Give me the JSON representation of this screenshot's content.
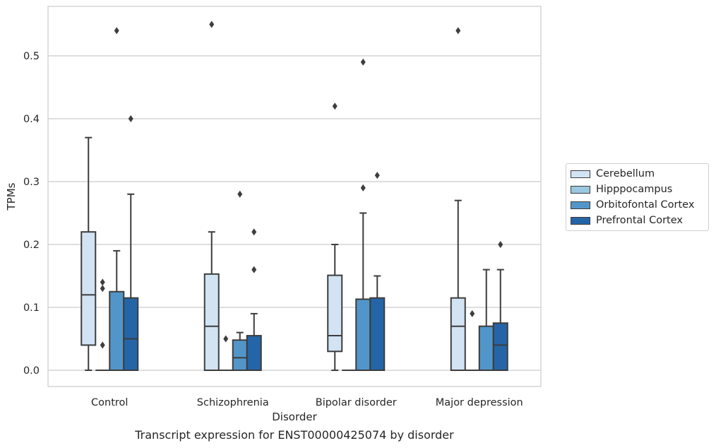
{
  "chart_data": {
    "type": "box",
    "xlabel": "Disorder",
    "ylabel": "TPMs",
    "ylim": [
      -0.027,
      0.58
    ],
    "yticks": [
      0.0,
      0.1,
      0.2,
      0.3,
      0.4,
      0.5
    ],
    "ytick_labels": [
      "0.0",
      "0.1",
      "0.2",
      "0.3",
      "0.4",
      "0.5"
    ],
    "grid": "horizontal",
    "legend_position": "right",
    "categories": [
      "Control",
      "Schizophrenia",
      "Bipolar disorder",
      "Major depression"
    ],
    "series": [
      {
        "name": "Cerebellum",
        "color": "#d2e3f3",
        "boxes": [
          {
            "min": 0.0,
            "q1": 0.04,
            "median": 0.12,
            "q3": 0.22,
            "max": 0.37,
            "outliers": []
          },
          {
            "min": 0.0,
            "q1": 0.0,
            "median": 0.07,
            "q3": 0.153,
            "max": 0.22,
            "outliers": [
              0.55
            ]
          },
          {
            "min": 0.0,
            "q1": 0.03,
            "median": 0.055,
            "q3": 0.151,
            "max": 0.2,
            "outliers": [
              0.42
            ]
          },
          {
            "min": 0.0,
            "q1": 0.0,
            "median": 0.07,
            "q3": 0.115,
            "max": 0.27,
            "outliers": [
              0.54
            ]
          }
        ]
      },
      {
        "name": "Hipppocampus",
        "color": "#9ac8e0",
        "boxes": [
          {
            "min": 0.0,
            "q1": 0.0,
            "median": 0.0,
            "q3": 0.0,
            "max": 0.0,
            "outliers": [
              0.04,
              0.13,
              0.14
            ]
          },
          {
            "min": 0.0,
            "q1": 0.0,
            "median": 0.0,
            "q3": 0.0,
            "max": 0.0,
            "outliers": [
              0.05
            ]
          },
          {
            "min": 0.0,
            "q1": 0.0,
            "median": 0.0,
            "q3": 0.0,
            "max": 0.0,
            "outliers": []
          },
          {
            "min": 0.0,
            "q1": 0.0,
            "median": 0.0,
            "q3": 0.0,
            "max": 0.0,
            "outliers": [
              0.09
            ]
          }
        ]
      },
      {
        "name": "Orbitofontal Cortex",
        "color": "#5296c9",
        "boxes": [
          {
            "min": 0.0,
            "q1": 0.0,
            "median": 0.0,
            "q3": 0.125,
            "max": 0.19,
            "outliers": [
              0.54
            ]
          },
          {
            "min": 0.0,
            "q1": 0.0,
            "median": 0.02,
            "q3": 0.048,
            "max": 0.06,
            "outliers": [
              0.28
            ]
          },
          {
            "min": 0.0,
            "q1": 0.0,
            "median": 0.0,
            "q3": 0.113,
            "max": 0.25,
            "outliers": [
              0.29,
              0.49
            ]
          },
          {
            "min": 0.0,
            "q1": 0.0,
            "median": 0.0,
            "q3": 0.07,
            "max": 0.16,
            "outliers": []
          }
        ]
      },
      {
        "name": "Prefrontal Cortex",
        "color": "#2465a7",
        "boxes": [
          {
            "min": 0.0,
            "q1": 0.0,
            "median": 0.05,
            "q3": 0.115,
            "max": 0.28,
            "outliers": [
              0.4
            ]
          },
          {
            "min": 0.0,
            "q1": 0.0,
            "median": 0.0,
            "q3": 0.055,
            "max": 0.09,
            "outliers": [
              0.16,
              0.22
            ]
          },
          {
            "min": 0.0,
            "q1": 0.0,
            "median": 0.0,
            "q3": 0.115,
            "max": 0.15,
            "outliers": [
              0.31
            ]
          },
          {
            "min": 0.0,
            "q1": 0.0,
            "median": 0.04,
            "q3": 0.075,
            "max": 0.16,
            "outliers": [
              0.2
            ]
          }
        ]
      }
    ]
  },
  "caption": "Transcript expression for ENST00000425074 by disorder"
}
